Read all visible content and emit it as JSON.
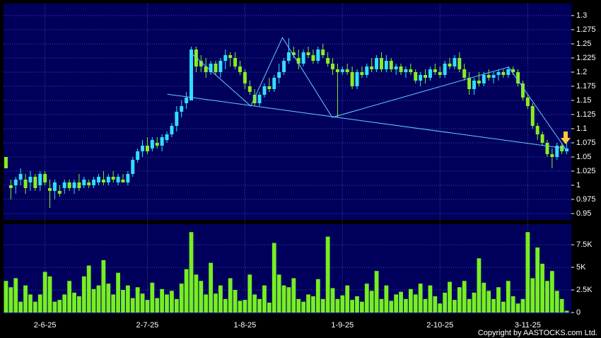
{
  "chart_data": [
    {
      "type": "candlestick",
      "categories": [
        null,
        null,
        null,
        null,
        null,
        null,
        null,
        null,
        "2-6-25",
        null,
        null,
        null,
        null,
        null,
        null,
        null,
        null,
        null,
        null,
        null,
        null,
        null,
        null,
        null,
        null,
        null,
        null,
        null,
        null,
        "2-7-25",
        null,
        null,
        null,
        null,
        null,
        null,
        null,
        null,
        null,
        null,
        null,
        null,
        null,
        null,
        null,
        null,
        null,
        null,
        null,
        "1-8-25",
        null,
        null,
        null,
        null,
        null,
        null,
        null,
        null,
        null,
        null,
        null,
        null,
        null,
        null,
        null,
        null,
        null,
        null,
        null,
        "1-9-25",
        null,
        null,
        null,
        null,
        null,
        null,
        null,
        null,
        null,
        null,
        null,
        null,
        null,
        null,
        null,
        null,
        null,
        null,
        null,
        "2-10-25",
        null,
        null,
        null,
        null,
        null,
        null,
        null,
        null,
        null,
        null,
        null,
        null,
        null,
        null,
        null,
        null,
        null,
        "3-11-25",
        null,
        null,
        null,
        null,
        null,
        null,
        null,
        null
      ],
      "open": [
        1.05,
        1.0,
        1.0,
        1.01,
        1.01,
        1.005,
        1.015,
        1.0,
        1.02,
        0.995,
        0.99,
        0.99,
        0.995,
        1.005,
        0.995,
        1.005,
        1.0,
        1.005,
        1.0,
        1.005,
        1.01,
        1.005,
        1.015,
        1.005,
        1.01,
        1.005,
        1.02,
        1.045,
        1.06,
        1.07,
        1.065,
        1.075,
        1.07,
        1.08,
        1.09,
        1.105,
        1.13,
        1.145,
        1.15,
        1.24,
        1.22,
        1.21,
        1.2,
        1.215,
        1.2,
        1.22,
        1.23,
        1.225,
        1.21,
        1.2,
        1.175,
        1.16,
        1.145,
        1.16,
        1.175,
        1.17,
        1.19,
        1.2,
        1.22,
        1.235,
        1.225,
        1.215,
        1.235,
        1.23,
        1.22,
        1.24,
        1.225,
        1.215,
        1.205,
        1.2,
        1.205,
        1.2,
        1.175,
        1.2,
        1.195,
        1.21,
        1.205,
        1.225,
        1.205,
        1.22,
        1.205,
        1.21,
        1.2,
        1.205,
        1.2,
        1.185,
        1.195,
        1.19,
        1.205,
        1.2,
        1.195,
        1.215,
        1.21,
        1.225,
        1.205,
        1.19,
        1.17,
        1.185,
        1.18,
        1.195,
        1.19,
        1.195,
        1.2,
        1.195,
        1.205,
        1.2,
        1.18,
        1.155,
        1.14,
        1.105,
        1.09,
        1.075,
        1.055,
        1.05,
        1.07,
        1.06
      ],
      "high": [
        1.05,
        1.01,
        1.015,
        1.03,
        1.02,
        1.025,
        1.02,
        1.025,
        1.025,
        1.01,
        1.01,
        1.0,
        1.01,
        1.01,
        1.01,
        1.02,
        1.015,
        1.01,
        1.015,
        1.02,
        1.025,
        1.02,
        1.025,
        1.02,
        1.02,
        1.025,
        1.05,
        1.065,
        1.08,
        1.085,
        1.085,
        1.085,
        1.09,
        1.095,
        1.11,
        1.14,
        1.15,
        1.165,
        1.245,
        1.245,
        1.23,
        1.225,
        1.22,
        1.22,
        1.225,
        1.24,
        1.235,
        1.235,
        1.22,
        1.205,
        1.185,
        1.17,
        1.165,
        1.18,
        1.19,
        1.195,
        1.215,
        1.225,
        1.26,
        1.245,
        1.24,
        1.24,
        1.245,
        1.24,
        1.245,
        1.25,
        1.235,
        1.225,
        1.215,
        1.21,
        1.215,
        1.21,
        1.205,
        1.21,
        1.215,
        1.225,
        1.23,
        1.235,
        1.23,
        1.225,
        1.215,
        1.215,
        1.21,
        1.215,
        1.205,
        1.2,
        1.205,
        1.21,
        1.215,
        1.21,
        1.22,
        1.225,
        1.23,
        1.235,
        1.215,
        1.2,
        1.19,
        1.2,
        1.2,
        1.205,
        1.2,
        1.205,
        1.205,
        1.21,
        1.21,
        1.205,
        1.185,
        1.16,
        1.145,
        1.11,
        1.095,
        1.08,
        1.065,
        1.075,
        1.075,
        1.075
      ],
      "low": [
        1.03,
        0.975,
        0.985,
        1.0,
        0.985,
        0.99,
        0.99,
        0.99,
        1.0,
        0.96,
        0.975,
        0.98,
        0.985,
        0.99,
        0.985,
        0.99,
        0.995,
        0.995,
        0.995,
        1.0,
        1.0,
        1.0,
        1.005,
        1.0,
        1.005,
        1.0,
        1.015,
        1.04,
        1.05,
        1.055,
        1.06,
        1.065,
        1.06,
        1.075,
        1.085,
        1.095,
        1.12,
        1.135,
        1.15,
        1.2,
        1.2,
        1.19,
        1.195,
        1.195,
        1.19,
        1.205,
        1.21,
        1.205,
        1.195,
        1.17,
        1.16,
        1.14,
        1.14,
        1.155,
        1.165,
        1.165,
        1.18,
        1.195,
        1.215,
        1.225,
        1.205,
        1.21,
        1.225,
        1.215,
        1.215,
        1.225,
        1.21,
        1.195,
        1.12,
        1.195,
        1.195,
        1.17,
        1.17,
        1.19,
        1.19,
        1.2,
        1.2,
        1.2,
        1.2,
        1.2,
        1.195,
        1.195,
        1.19,
        1.195,
        1.18,
        1.175,
        1.18,
        1.185,
        1.195,
        1.19,
        1.19,
        1.205,
        1.205,
        1.2,
        1.185,
        1.16,
        1.16,
        1.175,
        1.175,
        1.185,
        1.18,
        1.185,
        1.19,
        1.19,
        1.195,
        1.175,
        1.15,
        1.135,
        1.1,
        1.08,
        1.07,
        1.05,
        1.03,
        1.045,
        1.055,
        1.055
      ],
      "close": [
        1.03,
        0.995,
        1.01,
        1.02,
        0.995,
        1.015,
        0.995,
        1.02,
        1.005,
        0.99,
        1.005,
        0.985,
        1.005,
        0.995,
        1.005,
        0.995,
        1.01,
        1.0,
        1.01,
        1.015,
        1.005,
        1.015,
        1.01,
        1.015,
        1.005,
        1.02,
        1.045,
        1.06,
        1.07,
        1.06,
        1.08,
        1.07,
        1.085,
        1.09,
        1.105,
        1.13,
        1.14,
        1.155,
        1.24,
        1.21,
        1.21,
        1.2,
        1.215,
        1.2,
        1.22,
        1.23,
        1.225,
        1.21,
        1.2,
        1.18,
        1.165,
        1.145,
        1.16,
        1.175,
        1.17,
        1.19,
        1.2,
        1.22,
        1.235,
        1.23,
        1.215,
        1.235,
        1.23,
        1.22,
        1.24,
        1.23,
        1.215,
        1.205,
        1.2,
        1.205,
        1.2,
        1.175,
        1.2,
        1.195,
        1.21,
        1.205,
        1.225,
        1.205,
        1.22,
        1.205,
        1.21,
        1.2,
        1.205,
        1.2,
        1.185,
        1.195,
        1.19,
        1.205,
        1.2,
        1.195,
        1.215,
        1.21,
        1.225,
        1.205,
        1.19,
        1.17,
        1.185,
        1.18,
        1.195,
        1.19,
        1.195,
        1.2,
        1.195,
        1.205,
        1.2,
        1.18,
        1.155,
        1.14,
        1.105,
        1.09,
        1.075,
        1.055,
        1.05,
        1.07,
        1.06,
        1.065
      ],
      "up_color": "#33ddff",
      "down_color": "#88ee22",
      "trendlines": [
        {
          "color": "#66ccff",
          "x": [
            33.1,
            114.7
          ],
          "y": [
            1.161,
            1.065
          ]
        },
        {
          "color": "#66ccff",
          "x": [
            37.9,
            50.2,
            56.7,
            66.9,
            103.1,
            114.7
          ],
          "y": [
            1.234,
            1.14,
            1.261,
            1.12,
            1.209,
            1.065
          ]
        }
      ],
      "ylim": [
        0.94,
        1.32
      ],
      "yticks": [
        0.95,
        0.975,
        1,
        1.025,
        1.05,
        1.075,
        1.1,
        1.125,
        1.15,
        1.175,
        1.2,
        1.225,
        1.25,
        1.275,
        1.3
      ],
      "grid": true
    },
    {
      "type": "bar",
      "values": [
        3500,
        2800,
        3800,
        1200,
        3000,
        2000,
        1200,
        2000,
        4500,
        4000,
        1200,
        1400,
        2000,
        3500,
        2200,
        1800,
        4000,
        5200,
        2600,
        3000,
        5800,
        3200,
        2000,
        4400,
        2500,
        3000,
        1600,
        2800,
        2100,
        1400,
        3300,
        1600,
        2600,
        2000,
        2400,
        1500,
        3200,
        4800,
        8900,
        4200,
        3500,
        2000,
        5500,
        2100,
        3000,
        1500,
        3800,
        2500,
        1300,
        1400,
        4200,
        2000,
        1500,
        3000,
        1100,
        7700,
        4200,
        3000,
        2800,
        3800,
        1500,
        1200,
        2000,
        1800,
        3700,
        1500,
        8400,
        2700,
        1500,
        1900,
        3000,
        1400,
        1800,
        1200,
        3200,
        2400,
        4600,
        1500,
        3000,
        1300,
        2000,
        2300,
        1500,
        2600,
        2000,
        3200,
        1500,
        3000,
        1800,
        1000,
        2200,
        3400,
        1400,
        2800,
        3500,
        1500,
        2200,
        6000,
        3300,
        2400,
        1500,
        2800,
        1200,
        3500,
        1800,
        1000,
        1500,
        8900,
        3800,
        7200,
        5400,
        3500,
        4600,
        2400,
        1500,
        200
      ],
      "color": "#77ee22",
      "ylim": [
        0,
        9700
      ],
      "yticks": [
        0,
        {
          "value": 2500,
          "label": "2.5K"
        },
        {
          "value": 5000,
          "label": "5K"
        },
        {
          "value": 7500,
          "label": "7.5K"
        }
      ],
      "grid": true
    }
  ],
  "footer": {
    "copyright": "Copyright by AASTOCKS.com Ltd."
  }
}
